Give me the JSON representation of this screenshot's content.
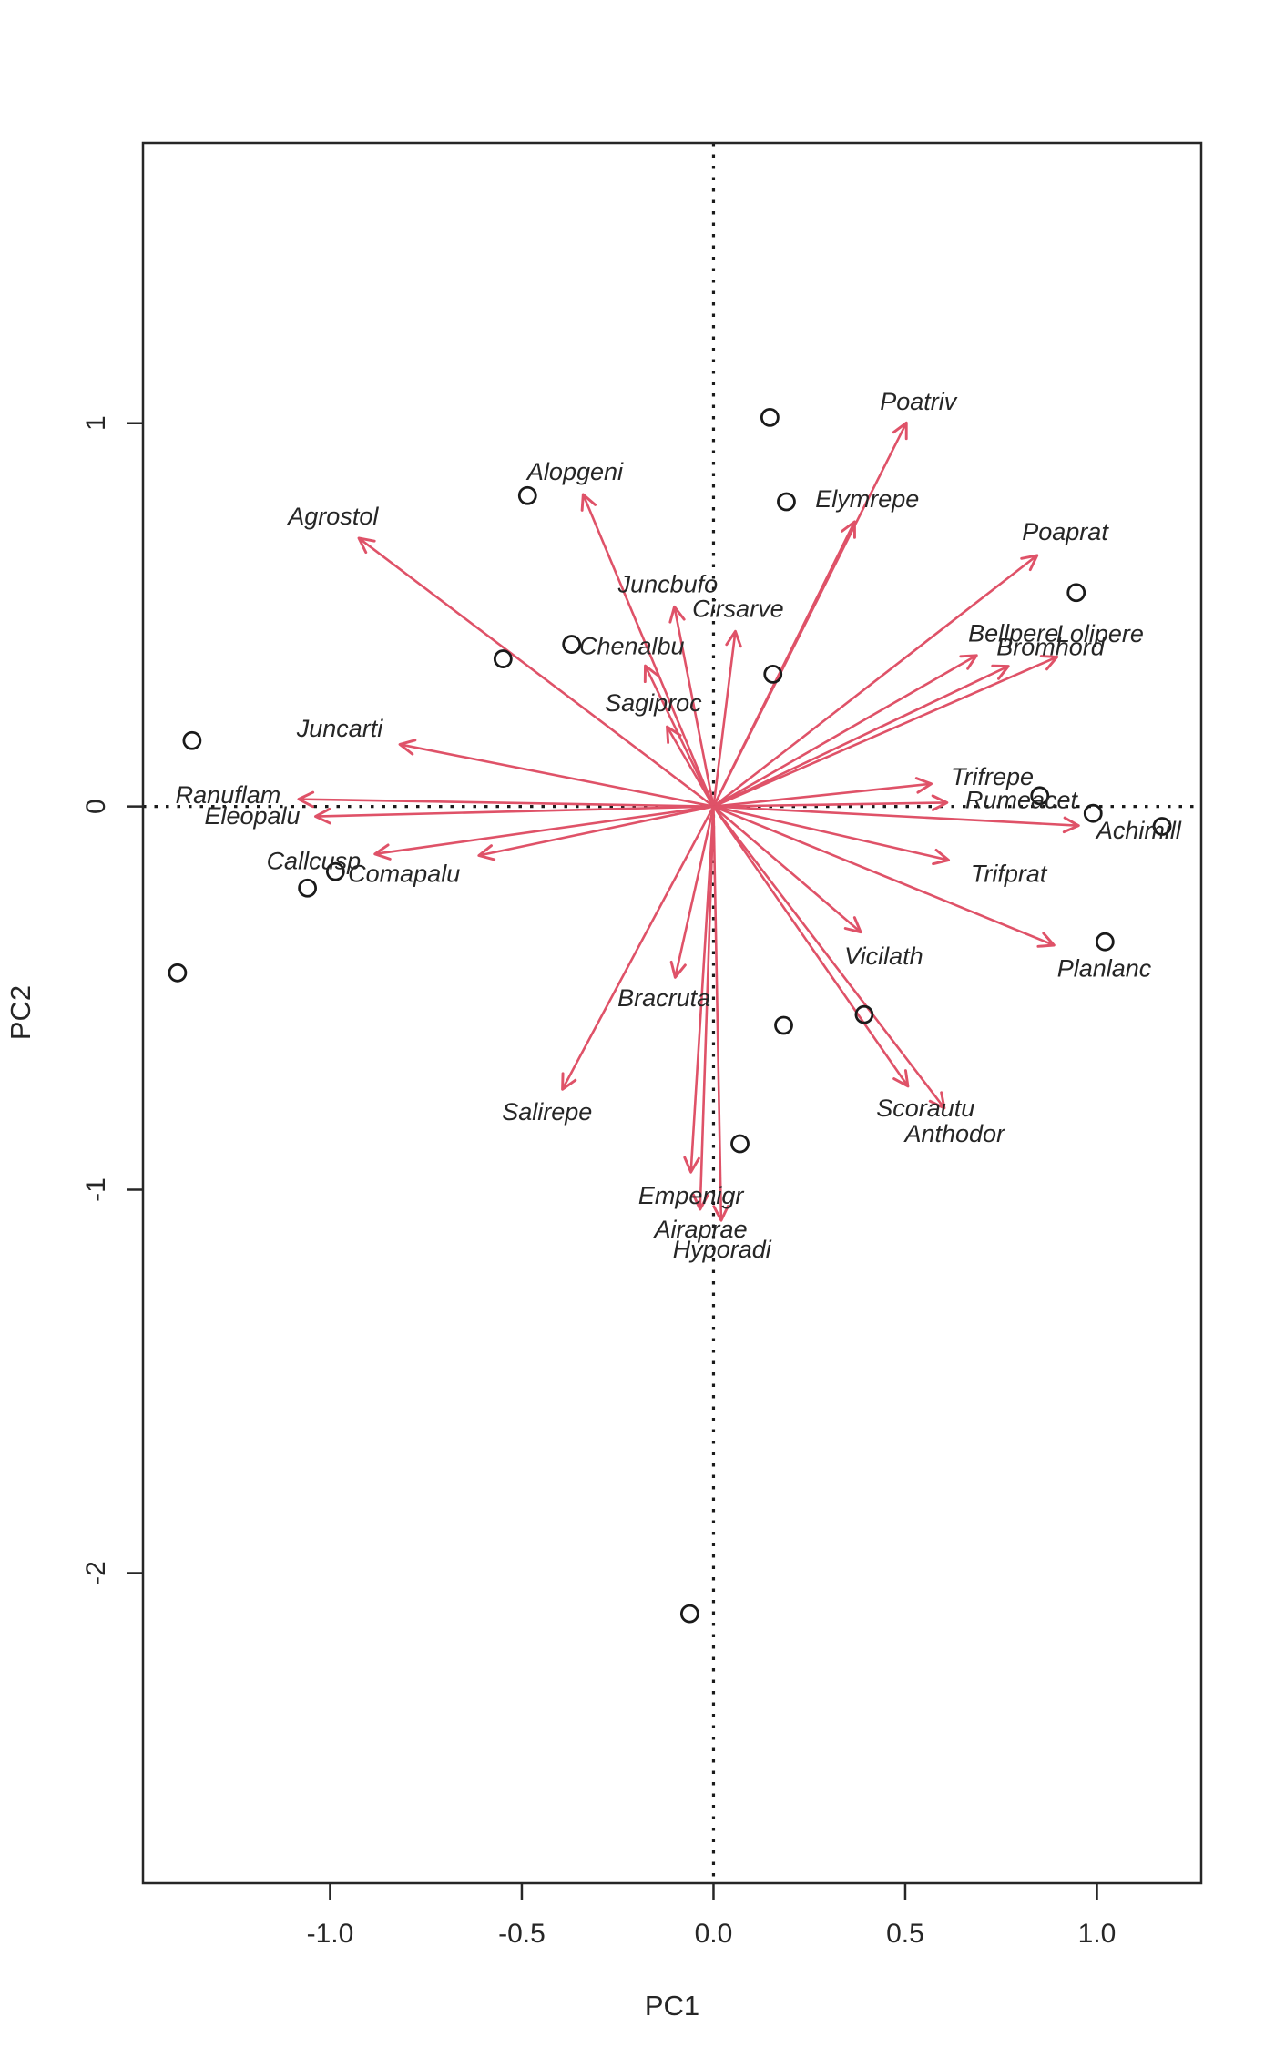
{
  "figure": {
    "type": "PCA biplot",
    "background": "#ffffff"
  },
  "chart_data": {
    "type": "scatter",
    "subtype": "pca-biplot",
    "title": "",
    "xlabel": "PC1",
    "ylabel": "PC2",
    "xlim": [
      -1.488,
      1.272
    ],
    "ylim": [
      -2.809,
      1.731
    ],
    "x_ticks": [
      -1.0,
      -0.5,
      0.0,
      0.5,
      1.0
    ],
    "x_tick_labels": [
      "-1.0",
      "-0.5",
      "0.0",
      "0.5",
      "1.0"
    ],
    "y_ticks": [
      1,
      0,
      -1,
      -2
    ],
    "y_tick_labels": [
      "1",
      "0",
      "-1",
      "-2"
    ],
    "grid": false,
    "legend": "none",
    "reference_lines": {
      "h": 0.0,
      "v": 0.0,
      "style": "dotted",
      "color": "#1a1a1a"
    },
    "sites": {
      "marker": "open-circle",
      "color": "#1a1a1a",
      "points": [
        [
          0.147,
          1.015
        ],
        [
          0.19,
          0.795
        ],
        [
          0.946,
          0.558
        ],
        [
          0.155,
          0.345
        ],
        [
          -0.485,
          0.811
        ],
        [
          -0.549,
          0.385
        ],
        [
          -0.37,
          0.423
        ],
        [
          -1.36,
          0.172
        ],
        [
          0.851,
          0.028
        ],
        [
          0.99,
          -0.018
        ],
        [
          1.17,
          -0.052
        ],
        [
          -0.986,
          -0.17
        ],
        [
          -1.059,
          -0.213
        ],
        [
          -1.398,
          -0.434
        ],
        [
          1.021,
          -0.353
        ],
        [
          0.183,
          -0.571
        ],
        [
          0.393,
          -0.543
        ],
        [
          0.069,
          -0.88
        ],
        [
          -0.062,
          -2.106
        ]
      ]
    },
    "species_arrows": {
      "color": "#df5268",
      "items": [
        {
          "name": "Poatriv",
          "tip": [
            0.503,
            1.001
          ],
          "label": [
            0.534,
            1.056
          ]
        },
        {
          "name": "Elymrepe",
          "tip": [
            0.368,
            0.743
          ],
          "label": [
            0.401,
            0.802
          ]
        },
        {
          "name": "Poaprat",
          "tip": [
            0.844,
            0.655
          ],
          "label": [
            0.917,
            0.716
          ]
        },
        {
          "name": "Bellpere",
          "tip": [
            0.686,
            0.394
          ],
          "label": [
            0.782,
            0.452
          ]
        },
        {
          "name": "Lolipere",
          "tip": [
            0.896,
            0.39
          ],
          "label": [
            1.008,
            0.45
          ]
        },
        {
          "name": "Bromhord",
          "tip": [
            0.769,
            0.366
          ],
          "label": [
            0.879,
            0.416
          ]
        },
        {
          "name": "Cirsarve",
          "tip": [
            0.057,
            0.457
          ],
          "label": [
            0.064,
            0.516
          ]
        },
        {
          "name": "Juncbufo",
          "tip": [
            -0.102,
            0.521
          ],
          "label": [
            -0.119,
            0.58
          ]
        },
        {
          "name": "Chenalbu",
          "tip": [
            -0.178,
            0.367
          ],
          "label": [
            -0.213,
            0.419
          ]
        },
        {
          "name": "Sagiproc",
          "tip": [
            -0.121,
            0.208
          ],
          "label": [
            -0.157,
            0.27
          ]
        },
        {
          "name": "Alopgeni",
          "tip": [
            -0.34,
            0.814
          ],
          "label": [
            -0.361,
            0.873
          ]
        },
        {
          "name": "Agrostol",
          "tip": [
            -0.925,
            0.7
          ],
          "label": [
            -0.992,
            0.757
          ]
        },
        {
          "name": "Juncarti",
          "tip": [
            -0.818,
            0.162
          ],
          "label": [
            -0.975,
            0.203
          ]
        },
        {
          "name": "Ranuflam",
          "tip": [
            -1.082,
            0.019
          ],
          "label": [
            -1.266,
            0.03
          ]
        },
        {
          "name": "Eleopalu",
          "tip": [
            -1.038,
            -0.026
          ],
          "label": [
            -1.203,
            -0.025
          ]
        },
        {
          "name": "Callcusp",
          "tip": [
            -0.883,
            -0.124
          ],
          "label": [
            -1.043,
            -0.142
          ]
        },
        {
          "name": "Comapalu",
          "tip": [
            -0.612,
            -0.128
          ],
          "label": [
            -0.807,
            -0.175
          ]
        },
        {
          "name": "Trifrepe",
          "tip": [
            0.568,
            0.059
          ],
          "label": [
            0.727,
            0.078
          ]
        },
        {
          "name": "Rumeacet",
          "tip": [
            0.609,
            0.01
          ],
          "label": [
            0.803,
            0.017
          ]
        },
        {
          "name": "Achimill",
          "tip": [
            0.952,
            -0.05
          ],
          "label": [
            1.109,
            -0.063
          ]
        },
        {
          "name": "Trifprat",
          "tip": [
            0.613,
            -0.14
          ],
          "label": [
            0.77,
            -0.176
          ]
        },
        {
          "name": "Planlanc",
          "tip": [
            0.888,
            -0.362
          ],
          "label": [
            1.019,
            -0.422
          ]
        },
        {
          "name": "Vicilath",
          "tip": [
            0.384,
            -0.328
          ],
          "label": [
            0.444,
            -0.39
          ]
        },
        {
          "name": "Scorautu",
          "tip": [
            0.507,
            -0.73
          ],
          "label": [
            0.553,
            -0.787
          ]
        },
        {
          "name": "Anthodor",
          "tip": [
            0.602,
            -0.787
          ],
          "label": [
            0.629,
            -0.854
          ]
        },
        {
          "name": "Bracruta",
          "tip": [
            -0.1,
            -0.446
          ],
          "label": [
            -0.129,
            -0.5
          ]
        },
        {
          "name": "Salirepe",
          "tip": [
            -0.394,
            -0.738
          ],
          "label": [
            -0.434,
            -0.797
          ]
        },
        {
          "name": "Empenigr",
          "tip": [
            -0.059,
            -0.954
          ],
          "label": [
            -0.059,
            -1.015
          ]
        },
        {
          "name": "Airaprae",
          "tip": [
            -0.035,
            -1.051
          ],
          "label": [
            -0.033,
            -1.103
          ]
        },
        {
          "name": "Hyporadi",
          "tip": [
            0.02,
            -1.08
          ],
          "label": [
            0.022,
            -1.155
          ]
        }
      ]
    }
  },
  "colors": {
    "species": "#df5268",
    "axes": "#262626",
    "background": "#ffffff"
  }
}
